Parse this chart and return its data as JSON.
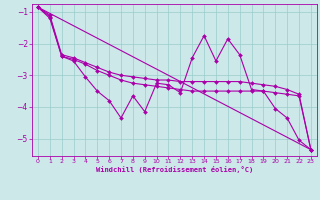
{
  "xlabel": "Windchill (Refroidissement éolien,°C)",
  "background_color": "#cce8e8",
  "line_color": "#aa00aa",
  "grid_color": "#99cccc",
  "xlim": [
    -0.5,
    23.5
  ],
  "ylim": [
    -5.55,
    -0.75
  ],
  "xticks": [
    0,
    1,
    2,
    3,
    4,
    5,
    6,
    7,
    8,
    9,
    10,
    11,
    12,
    13,
    14,
    15,
    16,
    17,
    18,
    19,
    20,
    21,
    22,
    23
  ],
  "yticks": [
    -1,
    -2,
    -3,
    -4,
    -5
  ],
  "line1_x": [
    0,
    1,
    2,
    3,
    4,
    5,
    6,
    7,
    8,
    9,
    10,
    11,
    12,
    13,
    14,
    15,
    16,
    17,
    18,
    19,
    20,
    21,
    22,
    23
  ],
  "line1_y": [
    -0.85,
    -1.2,
    -2.4,
    -2.55,
    -3.05,
    -3.5,
    -3.8,
    -4.35,
    -3.65,
    -4.15,
    -3.25,
    -3.3,
    -3.55,
    -2.45,
    -1.75,
    -2.55,
    -1.85,
    -2.35,
    -3.45,
    -3.5,
    -4.05,
    -4.35,
    -5.05,
    -5.35
  ],
  "line2_x": [
    0,
    23
  ],
  "line2_y": [
    -0.85,
    -5.35
  ],
  "line3_x": [
    0,
    1,
    2,
    3,
    4,
    5,
    6,
    7,
    8,
    9,
    10,
    11,
    12,
    13,
    14,
    15,
    16,
    17,
    18,
    19,
    20,
    21,
    22,
    23
  ],
  "line3_y": [
    -0.85,
    -1.15,
    -2.4,
    -2.5,
    -2.65,
    -2.85,
    -3.0,
    -3.15,
    -3.25,
    -3.3,
    -3.35,
    -3.4,
    -3.45,
    -3.5,
    -3.5,
    -3.5,
    -3.5,
    -3.5,
    -3.5,
    -3.5,
    -3.55,
    -3.6,
    -3.65,
    -5.35
  ],
  "line4_x": [
    0,
    1,
    2,
    3,
    4,
    5,
    6,
    7,
    8,
    9,
    10,
    11,
    12,
    13,
    14,
    15,
    16,
    17,
    18,
    19,
    20,
    21,
    22,
    23
  ],
  "line4_y": [
    -0.85,
    -1.1,
    -2.35,
    -2.45,
    -2.6,
    -2.75,
    -2.9,
    -3.0,
    -3.05,
    -3.1,
    -3.15,
    -3.15,
    -3.2,
    -3.2,
    -3.2,
    -3.2,
    -3.2,
    -3.2,
    -3.25,
    -3.3,
    -3.35,
    -3.45,
    -3.6,
    -5.35
  ]
}
